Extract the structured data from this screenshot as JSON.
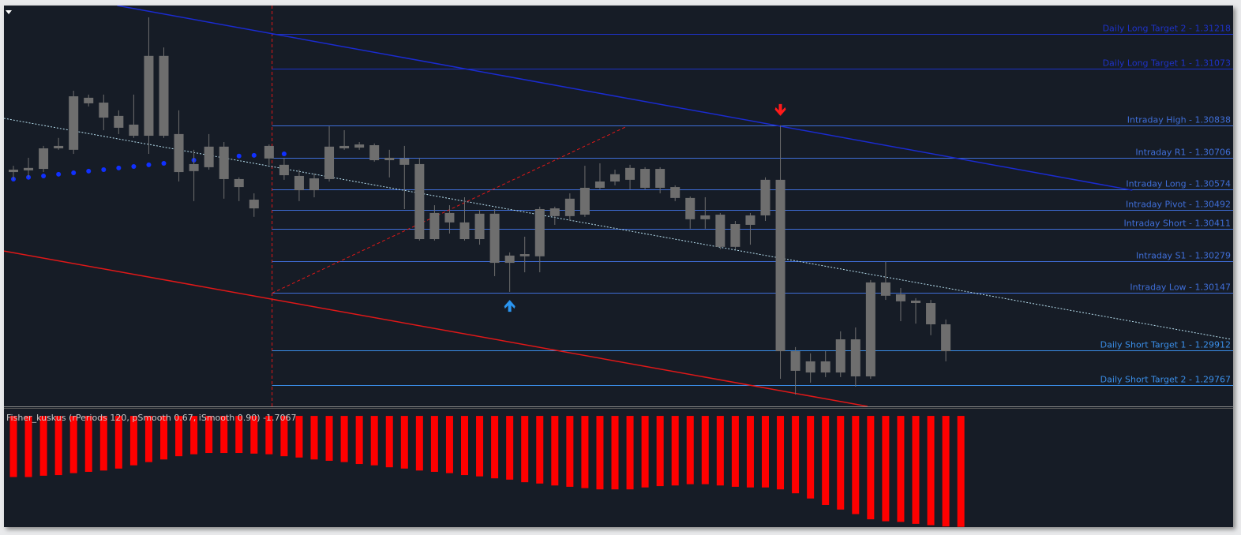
{
  "chart_data": {
    "type": "candlestick",
    "ylim": [
      1.29679,
      1.31335
    ],
    "candle_color": "#6e6e6e",
    "open": [
      1.30657,
      1.30664,
      1.30745,
      1.30755,
      1.30739,
      1.30954,
      1.30934,
      1.30879,
      1.30843,
      1.30797,
      1.31127,
      1.30804,
      1.3068,
      1.30752,
      1.30752,
      1.30618,
      1.30533,
      1.30755,
      1.30677,
      1.30631,
      1.30621,
      1.30618,
      1.30755,
      1.30761,
      1.30758,
      1.30706,
      1.30703,
      1.3068,
      1.30478,
      1.30478,
      1.30439,
      1.30475,
      1.30475,
      1.30302,
      1.30308,
      1.30299,
      1.30497,
      1.30537,
      1.30471,
      1.30608,
      1.30638,
      1.30664,
      1.3066,
      1.3066,
      1.30585,
      1.3054,
      1.30468,
      1.30471,
      1.30432,
      1.30468,
      1.30468,
      1.30615,
      1.29907,
      1.29865,
      1.29865,
      1.29956,
      1.29956,
      1.29803,
      1.30191,
      1.30142,
      1.30116,
      1.30106,
      1.30018
    ],
    "high": [
      1.30673,
      1.30706,
      1.30755,
      1.30788,
      1.30983,
      1.30967,
      1.30967,
      1.30902,
      1.30967,
      1.31286,
      1.31162,
      1.30902,
      1.30739,
      1.30804,
      1.30771,
      1.30625,
      1.30559,
      1.30761,
      1.30706,
      1.30657,
      1.30641,
      1.30836,
      1.3082,
      1.30771,
      1.30765,
      1.30739,
      1.30755,
      1.30706,
      1.3051,
      1.3051,
      1.30543,
      1.30491,
      1.30494,
      1.30315,
      1.3038,
      1.30504,
      1.30504,
      1.30559,
      1.30673,
      1.30683,
      1.30657,
      1.30677,
      1.30667,
      1.30667,
      1.30592,
      1.30546,
      1.30543,
      1.30478,
      1.30445,
      1.30478,
      1.30625,
      1.3084,
      1.29924,
      1.29898,
      1.29907,
      1.29989,
      1.30005,
      1.30201,
      1.30276,
      1.30168,
      1.30126,
      1.30119,
      1.30038
    ],
    "low": [
      1.30615,
      1.30625,
      1.30647,
      1.30739,
      1.30722,
      1.30918,
      1.3082,
      1.30804,
      1.30788,
      1.30722,
      1.30788,
      1.30608,
      1.30527,
      1.30657,
      1.30537,
      1.30527,
      1.30462,
      1.30677,
      1.30615,
      1.30527,
      1.30543,
      1.30608,
      1.30739,
      1.30739,
      1.3069,
      1.30625,
      1.30494,
      1.30364,
      1.30364,
      1.30393,
      1.30364,
      1.30347,
      1.30217,
      1.30152,
      1.30233,
      1.30233,
      1.30429,
      1.30445,
      1.30462,
      1.30576,
      1.30592,
      1.30576,
      1.30576,
      1.30559,
      1.30527,
      1.30413,
      1.30413,
      1.30328,
      1.30328,
      1.30347,
      1.30445,
      1.29793,
      1.29728,
      1.29777,
      1.298,
      1.298,
      1.29761,
      1.29793,
      1.30119,
      1.30031,
      1.30021,
      1.29973,
      1.29865
    ],
    "close": [
      1.30647,
      1.30654,
      1.3066,
      1.30745,
      1.3096,
      1.30931,
      1.30872,
      1.3083,
      1.30797,
      1.31127,
      1.30797,
      1.30647,
      1.30651,
      1.30667,
      1.30618,
      1.30585,
      1.30497,
      1.30703,
      1.30634,
      1.30572,
      1.30572,
      1.30752,
      1.30745,
      1.30748,
      1.30696,
      1.30696,
      1.30677,
      1.3037,
      1.3037,
      1.30439,
      1.3037,
      1.3037,
      1.30272,
      1.30272,
      1.30299,
      1.30494,
      1.30465,
      1.30465,
      1.30582,
      1.30582,
      1.30608,
      1.30615,
      1.30582,
      1.30582,
      1.3054,
      1.30452,
      1.30452,
      1.30338,
      1.30338,
      1.30429,
      1.30615,
      1.29907,
      1.29826,
      1.29819,
      1.29819,
      1.29819,
      1.29803,
      1.30191,
      1.30136,
      1.30113,
      1.30106,
      1.30018,
      1.29907
    ],
    "dots": {
      "color": "#1030ff",
      "values": [
        1.30618,
        1.30625,
        1.30631,
        1.30638,
        1.30644,
        1.30651,
        1.30657,
        1.30664,
        1.3067,
        1.30677,
        1.30683,
        1.3069,
        1.30696,
        1.30703,
        1.30709,
        1.30713,
        1.30716,
        1.30719,
        1.30722
      ]
    },
    "levels_from": 17.2,
    "levels": [
      {
        "label": "Daily Long Target 2 - 1.31218",
        "value": 1.31218,
        "color": "#1e32c8"
      },
      {
        "label": "Daily Long Target 1 - 1.31073",
        "value": 1.31073,
        "color": "#1e32c8"
      },
      {
        "label": "Intraday High - 1.30838",
        "value": 1.30838,
        "color": "#3f6ed8"
      },
      {
        "label": "Intraday R1 - 1.30706",
        "value": 1.30706,
        "color": "#3f6ed8"
      },
      {
        "label": "Intraday Long - 1.30574",
        "value": 1.30574,
        "color": "#3f6ed8"
      },
      {
        "label": "Intraday Pivot - 1.30492",
        "value": 1.30492,
        "color": "#3f6ed8"
      },
      {
        "label": "Intraday Short - 1.30411",
        "value": 1.30411,
        "color": "#3f6ed8"
      },
      {
        "label": "Intraday S1 - 1.30279",
        "value": 1.30279,
        "color": "#3f6ed8"
      },
      {
        "label": "Intraday Low - 1.30147",
        "value": 1.30147,
        "color": "#3f6ed8"
      },
      {
        "label": "Daily Short Target 1 - 1.29912",
        "value": 1.29912,
        "color": "#3a8ee8"
      },
      {
        "label": "Daily Short Target 2 - 1.29767",
        "value": 1.29767,
        "color": "#3a8ee8"
      }
    ],
    "lines": [
      {
        "color": "#1a2bd0",
        "style": "solid",
        "x": [
          6.9,
          74.4
        ],
        "y": [
          1.31335,
          1.30572
        ]
      },
      {
        "color": "#e01818",
        "style": "solid",
        "x": [
          -0.63,
          56.8
        ],
        "y": [
          1.30321,
          1.29679
        ]
      },
      {
        "color": "#b8e0f0",
        "style": "dotted",
        "x": [
          -0.63,
          81.0
        ],
        "y": [
          1.30869,
          1.29956
        ]
      },
      {
        "color": "#e01818",
        "style": "dashed",
        "x": [
          17.2,
          40.8
        ],
        "y": [
          1.30147,
          1.30836
        ]
      }
    ],
    "vline": {
      "index": 17.2,
      "color": "#e01818",
      "style": "dashed"
    },
    "arrows": [
      {
        "index": 51,
        "price": 1.30902,
        "direction": "down",
        "color": "#ff1a1a"
      },
      {
        "index": 33,
        "price": 1.30096,
        "direction": "up",
        "color": "#2a95f0"
      }
    ],
    "indicator": {
      "label": "Fisher_kuskus (rPeriods 120, pSmooth 0.67, iSmooth 0.90)",
      "color": "#ff0000",
      "ylim": [
        -1.71,
        0.11
      ],
      "values": [
        -0.94,
        -0.94,
        -0.92,
        -0.91,
        -0.88,
        -0.86,
        -0.84,
        -0.81,
        -0.76,
        -0.71,
        -0.67,
        -0.62,
        -0.59,
        -0.57,
        -0.57,
        -0.57,
        -0.58,
        -0.59,
        -0.62,
        -0.64,
        -0.67,
        -0.69,
        -0.71,
        -0.74,
        -0.76,
        -0.79,
        -0.81,
        -0.84,
        -0.86,
        -0.88,
        -0.91,
        -0.93,
        -0.96,
        -0.98,
        -1.02,
        -1.04,
        -1.07,
        -1.09,
        -1.11,
        -1.13,
        -1.13,
        -1.13,
        -1.1,
        -1.08,
        -1.07,
        -1.05,
        -1.05,
        -1.07,
        -1.09,
        -1.1,
        -1.1,
        -1.13,
        -1.19,
        -1.27,
        -1.37,
        -1.44,
        -1.51,
        -1.59,
        -1.62,
        -1.63,
        -1.66,
        -1.68,
        -1.7,
        -1.7067
      ]
    }
  }
}
